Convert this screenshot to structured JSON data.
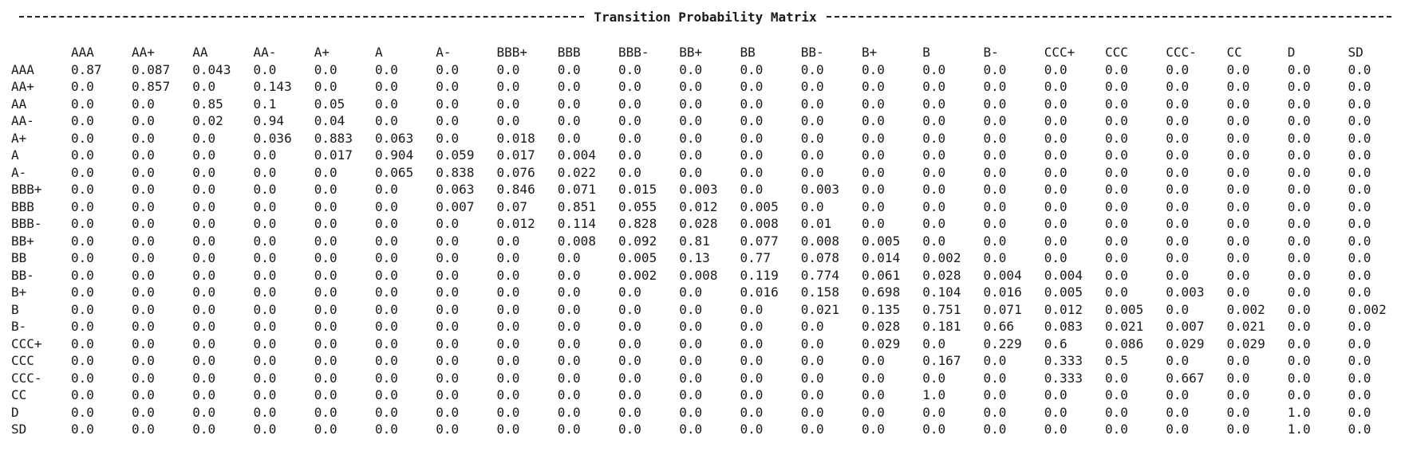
{
  "title": "Transition Probability Matrix",
  "columns": [
    "AAA",
    "AA+",
    "AA",
    "AA-",
    "A+",
    "A",
    "A-",
    "BBB+",
    "BBB",
    "BBB-",
    "BB+",
    "BB",
    "BB-",
    "B+",
    "B",
    "B-",
    "CCC+",
    "CCC",
    "CCC-",
    "CC",
    "D",
    "SD"
  ],
  "rows": [
    {
      "label": "AAA",
      "values": [
        "0.87",
        "0.087",
        "0.043",
        "0.0",
        "0.0",
        "0.0",
        "0.0",
        "0.0",
        "0.0",
        "0.0",
        "0.0",
        "0.0",
        "0.0",
        "0.0",
        "0.0",
        "0.0",
        "0.0",
        "0.0",
        "0.0",
        "0.0",
        "0.0",
        "0.0"
      ]
    },
    {
      "label": "AA+",
      "values": [
        "0.0",
        "0.857",
        "0.0",
        "0.143",
        "0.0",
        "0.0",
        "0.0",
        "0.0",
        "0.0",
        "0.0",
        "0.0",
        "0.0",
        "0.0",
        "0.0",
        "0.0",
        "0.0",
        "0.0",
        "0.0",
        "0.0",
        "0.0",
        "0.0",
        "0.0"
      ]
    },
    {
      "label": "AA",
      "values": [
        "0.0",
        "0.0",
        "0.85",
        "0.1",
        "0.05",
        "0.0",
        "0.0",
        "0.0",
        "0.0",
        "0.0",
        "0.0",
        "0.0",
        "0.0",
        "0.0",
        "0.0",
        "0.0",
        "0.0",
        "0.0",
        "0.0",
        "0.0",
        "0.0",
        "0.0"
      ]
    },
    {
      "label": "AA-",
      "values": [
        "0.0",
        "0.0",
        "0.02",
        "0.94",
        "0.04",
        "0.0",
        "0.0",
        "0.0",
        "0.0",
        "0.0",
        "0.0",
        "0.0",
        "0.0",
        "0.0",
        "0.0",
        "0.0",
        "0.0",
        "0.0",
        "0.0",
        "0.0",
        "0.0",
        "0.0"
      ]
    },
    {
      "label": "A+",
      "values": [
        "0.0",
        "0.0",
        "0.0",
        "0.036",
        "0.883",
        "0.063",
        "0.0",
        "0.018",
        "0.0",
        "0.0",
        "0.0",
        "0.0",
        "0.0",
        "0.0",
        "0.0",
        "0.0",
        "0.0",
        "0.0",
        "0.0",
        "0.0",
        "0.0",
        "0.0"
      ]
    },
    {
      "label": "A",
      "values": [
        "0.0",
        "0.0",
        "0.0",
        "0.0",
        "0.017",
        "0.904",
        "0.059",
        "0.017",
        "0.004",
        "0.0",
        "0.0",
        "0.0",
        "0.0",
        "0.0",
        "0.0",
        "0.0",
        "0.0",
        "0.0",
        "0.0",
        "0.0",
        "0.0",
        "0.0"
      ]
    },
    {
      "label": "A-",
      "values": [
        "0.0",
        "0.0",
        "0.0",
        "0.0",
        "0.0",
        "0.065",
        "0.838",
        "0.076",
        "0.022",
        "0.0",
        "0.0",
        "0.0",
        "0.0",
        "0.0",
        "0.0",
        "0.0",
        "0.0",
        "0.0",
        "0.0",
        "0.0",
        "0.0",
        "0.0"
      ]
    },
    {
      "label": "BBB+",
      "values": [
        "0.0",
        "0.0",
        "0.0",
        "0.0",
        "0.0",
        "0.0",
        "0.063",
        "0.846",
        "0.071",
        "0.015",
        "0.003",
        "0.0",
        "0.003",
        "0.0",
        "0.0",
        "0.0",
        "0.0",
        "0.0",
        "0.0",
        "0.0",
        "0.0",
        "0.0"
      ]
    },
    {
      "label": "BBB",
      "values": [
        "0.0",
        "0.0",
        "0.0",
        "0.0",
        "0.0",
        "0.0",
        "0.007",
        "0.07",
        "0.851",
        "0.055",
        "0.012",
        "0.005",
        "0.0",
        "0.0",
        "0.0",
        "0.0",
        "0.0",
        "0.0",
        "0.0",
        "0.0",
        "0.0",
        "0.0"
      ]
    },
    {
      "label": "BBB-",
      "values": [
        "0.0",
        "0.0",
        "0.0",
        "0.0",
        "0.0",
        "0.0",
        "0.0",
        "0.012",
        "0.114",
        "0.828",
        "0.028",
        "0.008",
        "0.01",
        "0.0",
        "0.0",
        "0.0",
        "0.0",
        "0.0",
        "0.0",
        "0.0",
        "0.0",
        "0.0"
      ]
    },
    {
      "label": "BB+",
      "values": [
        "0.0",
        "0.0",
        "0.0",
        "0.0",
        "0.0",
        "0.0",
        "0.0",
        "0.0",
        "0.008",
        "0.092",
        "0.81",
        "0.077",
        "0.008",
        "0.005",
        "0.0",
        "0.0",
        "0.0",
        "0.0",
        "0.0",
        "0.0",
        "0.0",
        "0.0"
      ]
    },
    {
      "label": "BB",
      "values": [
        "0.0",
        "0.0",
        "0.0",
        "0.0",
        "0.0",
        "0.0",
        "0.0",
        "0.0",
        "0.0",
        "0.005",
        "0.13",
        "0.77",
        "0.078",
        "0.014",
        "0.002",
        "0.0",
        "0.0",
        "0.0",
        "0.0",
        "0.0",
        "0.0",
        "0.0"
      ]
    },
    {
      "label": "BB-",
      "values": [
        "0.0",
        "0.0",
        "0.0",
        "0.0",
        "0.0",
        "0.0",
        "0.0",
        "0.0",
        "0.0",
        "0.002",
        "0.008",
        "0.119",
        "0.774",
        "0.061",
        "0.028",
        "0.004",
        "0.004",
        "0.0",
        "0.0",
        "0.0",
        "0.0",
        "0.0"
      ]
    },
    {
      "label": "B+",
      "values": [
        "0.0",
        "0.0",
        "0.0",
        "0.0",
        "0.0",
        "0.0",
        "0.0",
        "0.0",
        "0.0",
        "0.0",
        "0.0",
        "0.016",
        "0.158",
        "0.698",
        "0.104",
        "0.016",
        "0.005",
        "0.0",
        "0.003",
        "0.0",
        "0.0",
        "0.0"
      ]
    },
    {
      "label": "B",
      "values": [
        "0.0",
        "0.0",
        "0.0",
        "0.0",
        "0.0",
        "0.0",
        "0.0",
        "0.0",
        "0.0",
        "0.0",
        "0.0",
        "0.0",
        "0.021",
        "0.135",
        "0.751",
        "0.071",
        "0.012",
        "0.005",
        "0.0",
        "0.002",
        "0.0",
        "0.002"
      ]
    },
    {
      "label": "B-",
      "values": [
        "0.0",
        "0.0",
        "0.0",
        "0.0",
        "0.0",
        "0.0",
        "0.0",
        "0.0",
        "0.0",
        "0.0",
        "0.0",
        "0.0",
        "0.0",
        "0.028",
        "0.181",
        "0.66",
        "0.083",
        "0.021",
        "0.007",
        "0.021",
        "0.0",
        "0.0"
      ]
    },
    {
      "label": "CCC+",
      "values": [
        "0.0",
        "0.0",
        "0.0",
        "0.0",
        "0.0",
        "0.0",
        "0.0",
        "0.0",
        "0.0",
        "0.0",
        "0.0",
        "0.0",
        "0.0",
        "0.029",
        "0.0",
        "0.229",
        "0.6",
        "0.086",
        "0.029",
        "0.029",
        "0.0",
        "0.0"
      ]
    },
    {
      "label": "CCC",
      "values": [
        "0.0",
        "0.0",
        "0.0",
        "0.0",
        "0.0",
        "0.0",
        "0.0",
        "0.0",
        "0.0",
        "0.0",
        "0.0",
        "0.0",
        "0.0",
        "0.0",
        "0.167",
        "0.0",
        "0.333",
        "0.5",
        "0.0",
        "0.0",
        "0.0",
        "0.0"
      ]
    },
    {
      "label": "CCC-",
      "values": [
        "0.0",
        "0.0",
        "0.0",
        "0.0",
        "0.0",
        "0.0",
        "0.0",
        "0.0",
        "0.0",
        "0.0",
        "0.0",
        "0.0",
        "0.0",
        "0.0",
        "0.0",
        "0.0",
        "0.333",
        "0.0",
        "0.667",
        "0.0",
        "0.0",
        "0.0"
      ]
    },
    {
      "label": "CC",
      "values": [
        "0.0",
        "0.0",
        "0.0",
        "0.0",
        "0.0",
        "0.0",
        "0.0",
        "0.0",
        "0.0",
        "0.0",
        "0.0",
        "0.0",
        "0.0",
        "0.0",
        "1.0",
        "0.0",
        "0.0",
        "0.0",
        "0.0",
        "0.0",
        "0.0",
        "0.0"
      ]
    },
    {
      "label": "D",
      "values": [
        "0.0",
        "0.0",
        "0.0",
        "0.0",
        "0.0",
        "0.0",
        "0.0",
        "0.0",
        "0.0",
        "0.0",
        "0.0",
        "0.0",
        "0.0",
        "0.0",
        "0.0",
        "0.0",
        "0.0",
        "0.0",
        "0.0",
        "0.0",
        "1.0",
        "0.0"
      ]
    },
    {
      "label": "SD",
      "values": [
        "0.0",
        "0.0",
        "0.0",
        "0.0",
        "0.0",
        "0.0",
        "0.0",
        "0.0",
        "0.0",
        "0.0",
        "0.0",
        "0.0",
        "0.0",
        "0.0",
        "0.0",
        "0.0",
        "0.0",
        "0.0",
        "0.0",
        "0.0",
        "1.0",
        "0.0"
      ]
    }
  ]
}
